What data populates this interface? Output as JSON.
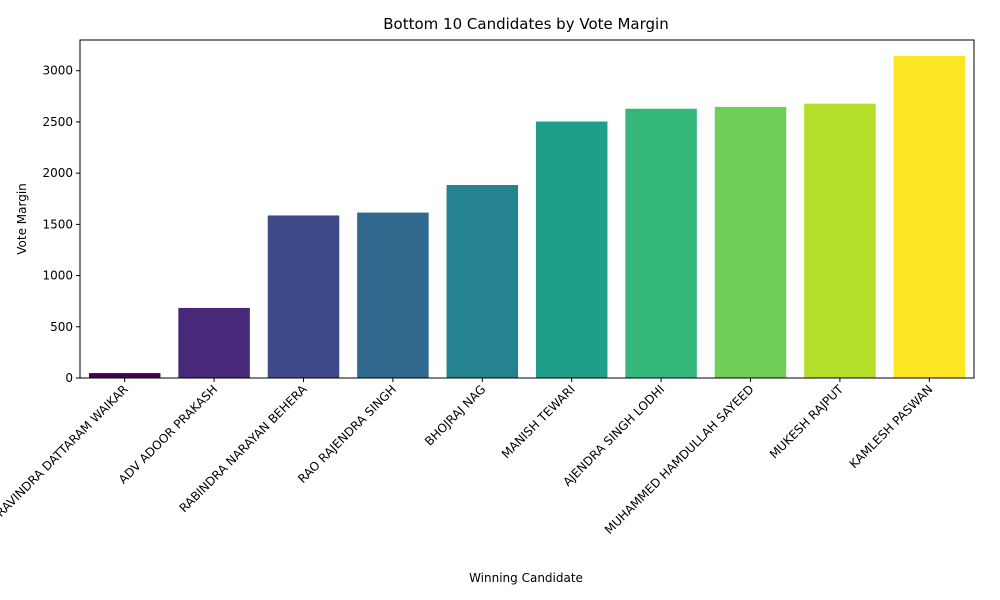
{
  "chart_data": {
    "type": "bar",
    "title": "Bottom 10 Candidates by Vote Margin",
    "xlabel": "Winning Candidate",
    "ylabel": "Vote Margin",
    "categories": [
      "RAVINDRA DATTARAM WAIKAR",
      "ADV ADOOR PRAKASH",
      "RABINDRA NARAYAN BEHERA",
      "RAO RAJENDRA SINGH",
      "BHOJRAJ NAG",
      "MANISH TEWARI",
      "AJENDRA SINGH LODHI",
      "MUHAMMED HAMDULLAH SAYEED",
      "MUKESH RAJPUT",
      "KAMLESH PASWAN"
    ],
    "values": [
      48,
      684,
      1587,
      1615,
      1884,
      2504,
      2629,
      2647,
      2678,
      3145
    ],
    "colors": [
      "#440154",
      "#482878",
      "#3e4989",
      "#31688e",
      "#26828e",
      "#1f9e89",
      "#35b779",
      "#6ece58",
      "#b5de2b",
      "#fde725"
    ],
    "ylim": [
      0,
      3300
    ],
    "yticks": [
      0,
      500,
      1000,
      1500,
      2000,
      2500,
      3000
    ],
    "grid": false,
    "legend": "none"
  }
}
